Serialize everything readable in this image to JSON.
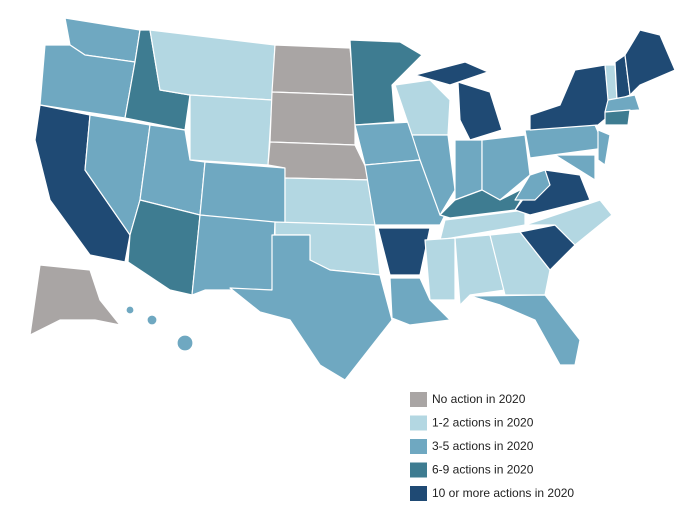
{
  "legend": {
    "items": [
      {
        "label": "No action in 2020",
        "color": "#a9a5a4"
      },
      {
        "label": "1-2 actions in 2020",
        "color": "#b3d7e2"
      },
      {
        "label": "3-5 actions in 2020",
        "color": "#6fa8c1"
      },
      {
        "label": "6-9 actions in 2020",
        "color": "#3e7c91"
      },
      {
        "label": "10 or more actions in 2020",
        "color": "#1f4a74"
      }
    ]
  }
}
